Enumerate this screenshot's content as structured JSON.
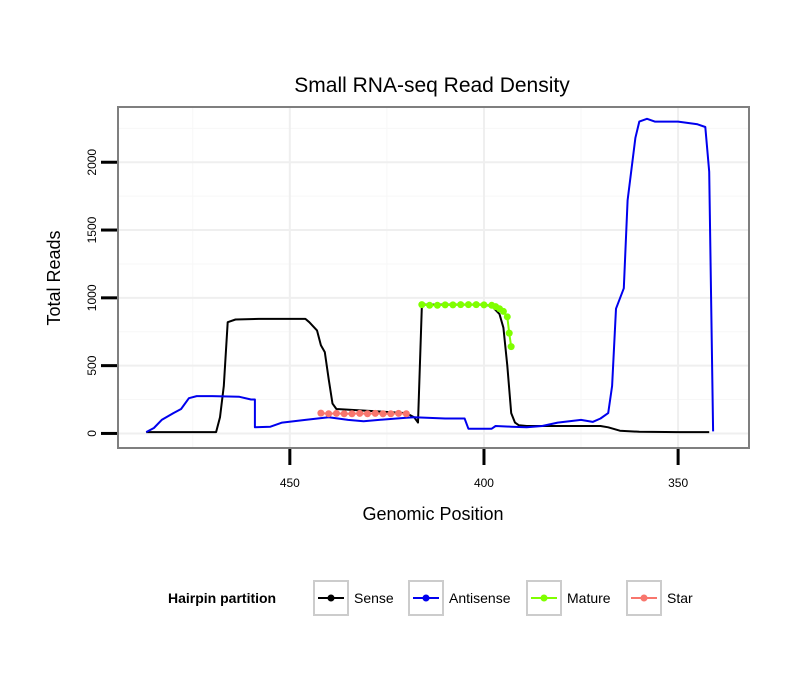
{
  "chart_data": {
    "type": "line",
    "title": "Small RNA-seq Read Density",
    "xlabel": "Genomic Position",
    "ylabel": "Total Reads",
    "xlim": [
      494,
      332
    ],
    "x_reversed": true,
    "ylim": [
      -100,
      2400
    ],
    "xticks": [
      450,
      400,
      350
    ],
    "yticks": [
      0,
      500,
      1000,
      1500,
      2000
    ],
    "grid": true,
    "legend": {
      "title": "Hairpin partition",
      "placement": "bottom",
      "entries": [
        "Sense",
        "Antisense",
        "Mature",
        "Star"
      ]
    },
    "series": [
      {
        "name": "Sense",
        "color": "#000000",
        "markers": false,
        "points": [
          [
            487,
            10
          ],
          [
            475,
            10
          ],
          [
            469,
            10
          ],
          [
            468,
            120
          ],
          [
            467,
            350
          ],
          [
            466,
            820
          ],
          [
            464,
            840
          ],
          [
            458,
            845
          ],
          [
            446,
            845
          ],
          [
            445,
            820
          ],
          [
            443,
            760
          ],
          [
            442,
            650
          ],
          [
            441,
            600
          ],
          [
            440,
            400
          ],
          [
            439,
            220
          ],
          [
            438,
            180
          ],
          [
            420,
            150
          ],
          [
            418,
            120
          ],
          [
            417,
            80
          ],
          [
            416,
            950
          ],
          [
            410,
            950
          ],
          [
            400,
            950
          ],
          [
            398,
            940
          ],
          [
            396,
            880
          ],
          [
            395,
            780
          ],
          [
            394,
            500
          ],
          [
            393,
            150
          ],
          [
            392,
            80
          ],
          [
            391,
            60
          ],
          [
            389,
            55
          ],
          [
            380,
            55
          ],
          [
            370,
            55
          ],
          [
            368,
            45
          ],
          [
            365,
            20
          ],
          [
            360,
            12
          ],
          [
            350,
            10
          ],
          [
            342,
            10
          ]
        ]
      },
      {
        "name": "Antisense",
        "color": "#0000ee",
        "markers": false,
        "points": [
          [
            487,
            10
          ],
          [
            485,
            40
          ],
          [
            483,
            100
          ],
          [
            480,
            150
          ],
          [
            478,
            180
          ],
          [
            476,
            260
          ],
          [
            474,
            275
          ],
          [
            470,
            275
          ],
          [
            463,
            270
          ],
          [
            460,
            250
          ],
          [
            459,
            250
          ],
          [
            459,
            45
          ],
          [
            455,
            50
          ],
          [
            452,
            80
          ],
          [
            446,
            100
          ],
          [
            440,
            120
          ],
          [
            435,
            100
          ],
          [
            431,
            90
          ],
          [
            427,
            100
          ],
          [
            420,
            115
          ],
          [
            418,
            120
          ],
          [
            410,
            110
          ],
          [
            405,
            110
          ],
          [
            404,
            35
          ],
          [
            398,
            35
          ],
          [
            397,
            55
          ],
          [
            393,
            50
          ],
          [
            389,
            45
          ],
          [
            385,
            55
          ],
          [
            381,
            80
          ],
          [
            375,
            100
          ],
          [
            372,
            85
          ],
          [
            370,
            110
          ],
          [
            368,
            150
          ],
          [
            367,
            350
          ],
          [
            366,
            920
          ],
          [
            364,
            1070
          ],
          [
            363,
            1720
          ],
          [
            361,
            2180
          ],
          [
            360,
            2300
          ],
          [
            358,
            2320
          ],
          [
            356,
            2300
          ],
          [
            350,
            2300
          ],
          [
            345,
            2280
          ],
          [
            343,
            2260
          ],
          [
            342,
            1930
          ],
          [
            341,
            15
          ]
        ]
      },
      {
        "name": "Mature",
        "color": "#7fff00",
        "markers": true,
        "points": [
          [
            416,
            950
          ],
          [
            414,
            945
          ],
          [
            412,
            945
          ],
          [
            410,
            948
          ],
          [
            408,
            948
          ],
          [
            406,
            950
          ],
          [
            404,
            950
          ],
          [
            402,
            950
          ],
          [
            400,
            948
          ],
          [
            398,
            945
          ],
          [
            397,
            935
          ],
          [
            396,
            920
          ],
          [
            395,
            900
          ],
          [
            394,
            860
          ],
          [
            393.5,
            740
          ],
          [
            393,
            640
          ]
        ]
      },
      {
        "name": "Star",
        "color": "#f8766d",
        "markers": true,
        "points": [
          [
            442,
            150
          ],
          [
            440,
            145
          ],
          [
            438,
            148
          ],
          [
            436,
            145
          ],
          [
            434,
            145
          ],
          [
            432,
            148
          ],
          [
            430,
            145
          ],
          [
            428,
            148
          ],
          [
            426,
            145
          ],
          [
            424,
            145
          ],
          [
            422,
            148
          ],
          [
            420,
            145
          ]
        ]
      }
    ]
  }
}
